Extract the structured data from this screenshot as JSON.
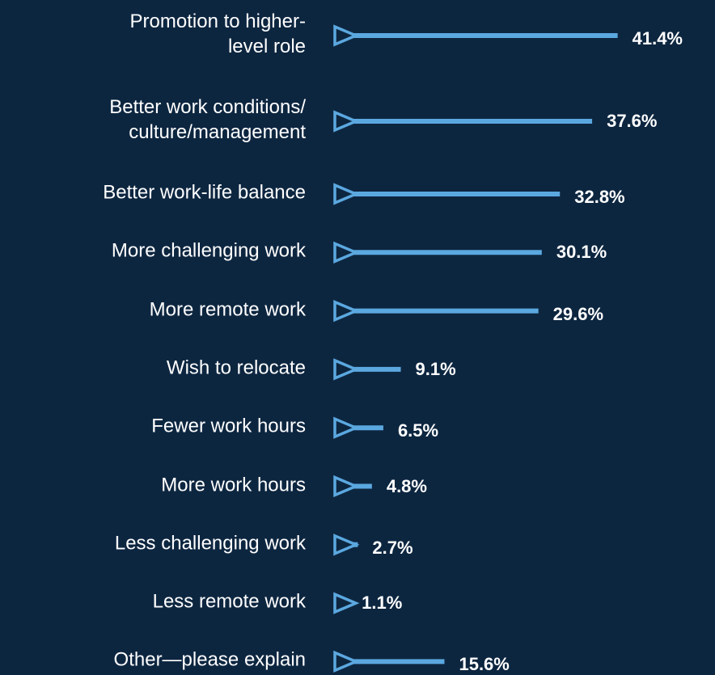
{
  "chart_data": {
    "type": "bar",
    "orientation": "horizontal",
    "categories": [
      "Promotion to higher-\nlevel role",
      "Better work conditions/\nculture/management",
      "Better work-life balance",
      "More challenging work",
      "More remote work",
      "Wish to relocate",
      "Fewer work hours",
      "More work hours",
      "Less challenging work",
      "Less remote work",
      "Other—please explain"
    ],
    "values": [
      41.4,
      37.6,
      32.8,
      30.1,
      29.6,
      9.1,
      6.5,
      4.8,
      2.7,
      1.1,
      15.6
    ],
    "value_labels": [
      "41.4%",
      "37.6%",
      "32.8%",
      "30.1%",
      "29.6%",
      "9.1%",
      "6.5%",
      "4.8%",
      "2.7%",
      "1.1%",
      "15.6%"
    ],
    "color": "#5ba8e0"
  }
}
